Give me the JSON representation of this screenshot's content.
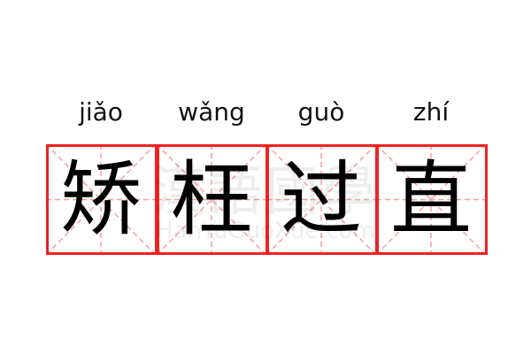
{
  "idiom": {
    "characters": [
      "矫",
      "枉",
      "过",
      "直"
    ],
    "pinyin": [
      "jiǎo",
      "wǎng",
      "guò",
      "zhí"
    ]
  },
  "watermark": {
    "chinese": "漢語國學",
    "latin": "HanYuGuoXue.com"
  },
  "colors": {
    "border": "#ee2222",
    "guide": "#f4a0a0",
    "text": "#000000"
  }
}
